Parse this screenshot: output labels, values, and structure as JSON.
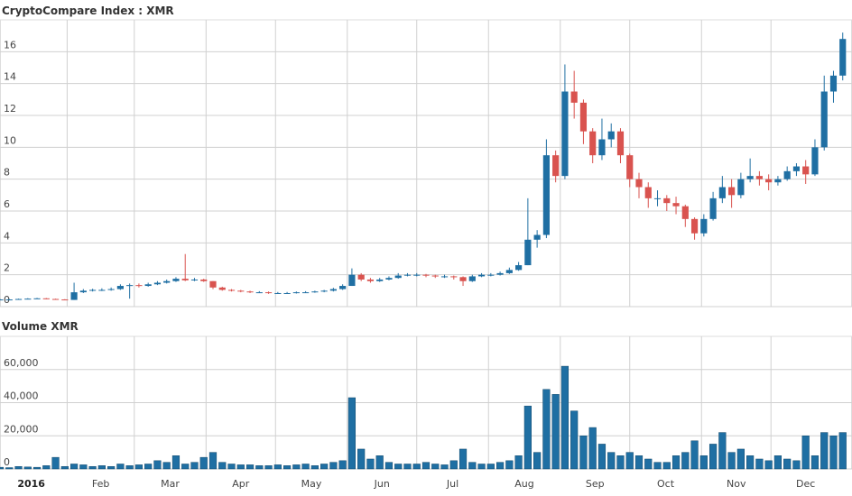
{
  "chart_data": {
    "type": "candlestick",
    "title": "CryptoCompare Index : XMR",
    "x": [
      2,
      6,
      10,
      14,
      18,
      22,
      26,
      30,
      34,
      38,
      42,
      46,
      50,
      54,
      58,
      62,
      66,
      70,
      74,
      78,
      82,
      86,
      90,
      94,
      98,
      102,
      106,
      110,
      114,
      118,
      122,
      126,
      130,
      134,
      138,
      142,
      146,
      150,
      154,
      158,
      162,
      166,
      170,
      174,
      178,
      182,
      186,
      190,
      194,
      198,
      202,
      206,
      210,
      214,
      218,
      222,
      226,
      230,
      234,
      238,
      242,
      246,
      250,
      254,
      258,
      262,
      266,
      270,
      274,
      278,
      282,
      286,
      290,
      294,
      298,
      302,
      306,
      310,
      314,
      318,
      322,
      326,
      330,
      334,
      338,
      342,
      346,
      350,
      354,
      358,
      362,
      366
    ],
    "open": [
      0.42,
      0.45,
      0.45,
      0.48,
      0.5,
      0.52,
      0.48,
      0.45,
      0.42,
      0.9,
      1.0,
      1.05,
      1.05,
      1.1,
      1.3,
      1.35,
      1.3,
      1.4,
      1.5,
      1.6,
      1.75,
      1.65,
      1.7,
      1.6,
      1.2,
      1.05,
      1.0,
      0.95,
      0.9,
      0.9,
      0.85,
      0.85,
      0.85,
      0.9,
      0.9,
      0.95,
      1.0,
      1.1,
      1.3,
      2.0,
      1.7,
      1.6,
      1.7,
      1.8,
      1.95,
      2.0,
      2.0,
      1.95,
      1.9,
      1.9,
      1.85,
      1.6,
      1.9,
      2.0,
      2.0,
      2.1,
      2.3,
      2.6,
      4.2,
      4.5,
      9.5,
      8.2,
      13.5,
      12.8,
      11.0,
      9.5,
      10.5,
      11.0,
      9.5,
      8.0,
      7.5,
      6.8,
      6.8,
      6.5,
      6.3,
      5.5,
      4.6,
      5.5,
      6.8,
      7.5,
      7.0,
      8.0,
      8.2,
      8.0,
      7.8,
      8.0,
      8.5,
      8.8,
      8.3,
      10.0,
      13.5,
      14.5
    ],
    "high": [
      0.48,
      0.48,
      0.5,
      0.53,
      0.55,
      0.54,
      0.5,
      0.47,
      1.5,
      1.1,
      1.12,
      1.15,
      1.2,
      1.4,
      1.45,
      1.45,
      1.5,
      1.6,
      1.7,
      1.85,
      3.3,
      1.8,
      1.75,
      1.6,
      1.25,
      1.1,
      1.05,
      1.0,
      0.97,
      0.95,
      0.92,
      0.92,
      0.95,
      0.97,
      1.0,
      1.05,
      1.18,
      1.4,
      2.4,
      2.1,
      1.8,
      1.8,
      1.9,
      2.1,
      2.1,
      2.1,
      2.05,
      2.0,
      2.0,
      1.95,
      1.9,
      2.0,
      2.1,
      2.1,
      2.2,
      2.45,
      2.8,
      6.8,
      4.8,
      10.5,
      9.8,
      15.2,
      14.8,
      13.0,
      11.2,
      11.8,
      11.5,
      11.2,
      9.6,
      8.4,
      7.8,
      7.3,
      7.0,
      6.9,
      6.4,
      5.6,
      5.8,
      7.2,
      8.2,
      8.0,
      8.4,
      9.3,
      8.5,
      8.3,
      8.2,
      8.8,
      9.0,
      9.2,
      10.5,
      14.5,
      14.8,
      17.2
    ],
    "low": [
      0.4,
      0.43,
      0.44,
      0.46,
      0.48,
      0.46,
      0.43,
      0.4,
      0.42,
      0.85,
      0.95,
      0.98,
      1.0,
      1.05,
      0.5,
      1.2,
      1.25,
      1.35,
      1.45,
      1.55,
      1.6,
      1.6,
      1.55,
      1.1,
      1.0,
      0.95,
      0.9,
      0.85,
      0.85,
      0.8,
      0.8,
      0.8,
      0.82,
      0.85,
      0.87,
      0.9,
      0.95,
      1.05,
      1.3,
      1.6,
      1.5,
      1.55,
      1.65,
      1.75,
      1.9,
      1.9,
      1.85,
      1.8,
      1.8,
      1.7,
      1.3,
      1.55,
      1.85,
      1.9,
      1.95,
      2.05,
      2.25,
      2.6,
      3.7,
      4.3,
      7.8,
      8.0,
      11.8,
      10.2,
      9.0,
      9.2,
      10.0,
      9.0,
      7.5,
      6.8,
      6.2,
      6.3,
      6.0,
      5.8,
      5.0,
      4.2,
      4.4,
      5.4,
      6.5,
      6.2,
      6.8,
      7.8,
      7.6,
      7.3,
      7.6,
      7.9,
      8.2,
      7.7,
      8.2,
      9.8,
      12.8,
      14.2
    ],
    "close": [
      0.45,
      0.45,
      0.48,
      0.5,
      0.52,
      0.48,
      0.45,
      0.42,
      0.9,
      1.0,
      1.05,
      1.05,
      1.1,
      1.3,
      1.35,
      1.3,
      1.4,
      1.5,
      1.6,
      1.75,
      1.65,
      1.7,
      1.6,
      1.2,
      1.05,
      1.0,
      0.95,
      0.9,
      0.9,
      0.85,
      0.85,
      0.85,
      0.9,
      0.9,
      0.95,
      1.0,
      1.1,
      1.3,
      2.0,
      1.7,
      1.6,
      1.7,
      1.8,
      1.95,
      2.0,
      2.0,
      1.95,
      1.9,
      1.9,
      1.85,
      1.6,
      1.9,
      2.0,
      2.0,
      2.1,
      2.3,
      2.6,
      4.2,
      4.5,
      9.5,
      8.2,
      13.5,
      12.8,
      11.0,
      9.5,
      10.5,
      11.0,
      9.5,
      8.0,
      7.5,
      6.8,
      6.8,
      6.5,
      6.3,
      5.5,
      4.6,
      5.5,
      6.8,
      7.5,
      7.0,
      8.0,
      8.2,
      8.0,
      7.8,
      8.0,
      8.5,
      8.8,
      8.3,
      10.0,
      13.5,
      14.5,
      16.8
    ],
    "colors": {
      "up": "#1f6fa3",
      "down": "#d9534f"
    },
    "ylim": [
      0,
      18
    ],
    "yticks": [
      0,
      2,
      4,
      6,
      8,
      10,
      12,
      14,
      16
    ],
    "xlim": [
      2,
      370
    ],
    "xticks": [
      {
        "value": 0,
        "label": "2016"
      },
      {
        "value": 31,
        "label": "Feb"
      },
      {
        "value": 60,
        "label": "Mar"
      },
      {
        "value": 91,
        "label": "Apr"
      },
      {
        "value": 121,
        "label": "May"
      },
      {
        "value": 152,
        "label": "Jun"
      },
      {
        "value": 182,
        "label": "Jul"
      },
      {
        "value": 213,
        "label": "Aug"
      },
      {
        "value": 244,
        "label": "Sep"
      },
      {
        "value": 274,
        "label": "Oct"
      },
      {
        "value": 305,
        "label": "Nov"
      },
      {
        "value": 335,
        "label": "Dec"
      }
    ],
    "grid": true,
    "volume": {
      "title": "Volume XMR",
      "color": "#1f6fa3",
      "values": [
        1000,
        800,
        1500,
        1200,
        1000,
        2000,
        7000,
        1500,
        3000,
        2500,
        1500,
        2000,
        1500,
        3000,
        2000,
        2500,
        3000,
        5000,
        4000,
        8000,
        3000,
        4000,
        7000,
        10000,
        4000,
        3000,
        2500,
        2500,
        2000,
        2000,
        2500,
        2000,
        2500,
        3000,
        2000,
        3000,
        4000,
        5000,
        43000,
        12000,
        6000,
        8000,
        4000,
        3000,
        3000,
        3000,
        4000,
        3000,
        2500,
        5000,
        12000,
        4000,
        3000,
        3000,
        4000,
        5000,
        8000,
        38000,
        10000,
        48000,
        45000,
        62000,
        35000,
        20000,
        25000,
        15000,
        10000,
        8000,
        10000,
        8000,
        6000,
        4000,
        4000,
        8000,
        10000,
        17000,
        8000,
        15000,
        22000,
        10000,
        12000,
        8000,
        6000,
        5000,
        8000,
        6000,
        5000,
        20000,
        8000,
        22000,
        20000,
        22000
      ],
      "ylim": [
        0,
        80000
      ],
      "yticks": [
        0,
        {
          "value": 20000,
          "label": "20,000"
        },
        {
          "value": 40000,
          "label": "40,000"
        },
        {
          "value": 60000,
          "label": "60,000"
        }
      ]
    }
  }
}
